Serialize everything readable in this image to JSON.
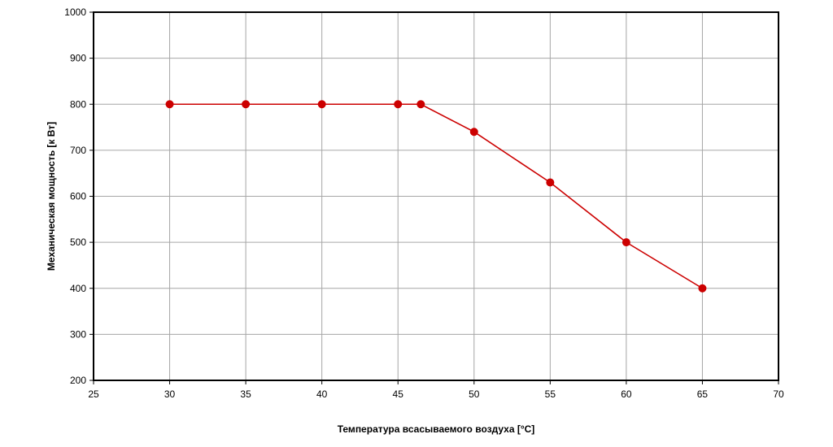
{
  "chart_data": {
    "type": "line",
    "title": "",
    "xlabel": "Температура всасываемого воздуха [°C]",
    "ylabel": "Механическая мощность [к Вт]",
    "xlim": [
      25,
      70
    ],
    "ylim": [
      200,
      1000
    ],
    "x_ticks": [
      25,
      30,
      35,
      40,
      45,
      50,
      55,
      60,
      65,
      70
    ],
    "y_ticks": [
      200,
      300,
      400,
      500,
      600,
      700,
      800,
      900,
      1000
    ],
    "grid": true,
    "series": [
      {
        "color": "#cc0000",
        "points": [
          {
            "x": 30,
            "y": 800
          },
          {
            "x": 35,
            "y": 800
          },
          {
            "x": 40,
            "y": 800
          },
          {
            "x": 45,
            "y": 800
          },
          {
            "x": 46.5,
            "y": 800
          },
          {
            "x": 50,
            "y": 740
          },
          {
            "x": 55,
            "y": 630
          },
          {
            "x": 60,
            "y": 500
          },
          {
            "x": 65,
            "y": 400
          }
        ]
      }
    ]
  }
}
